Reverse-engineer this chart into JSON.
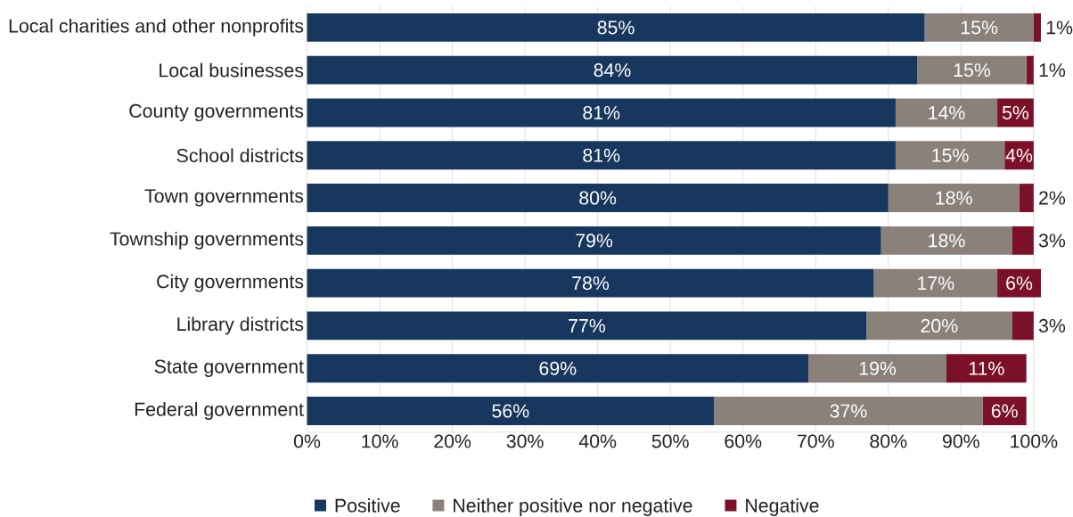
{
  "chart_data": {
    "type": "bar",
    "orientation": "horizontal",
    "stacked": true,
    "categories": [
      "Local charities and other nonprofits",
      "Local businesses",
      "County governments",
      "School districts",
      "Town governments",
      "Township governments",
      "City governments",
      "Library districts",
      "State government",
      "Federal government"
    ],
    "series": [
      {
        "name": "Positive",
        "color": "#17375e",
        "values": [
          85,
          84,
          81,
          81,
          80,
          79,
          78,
          77,
          69,
          56
        ],
        "value_labels": [
          "85%",
          "84%",
          "81%",
          "81%",
          "80%",
          "79%",
          "78%",
          "77%",
          "69%",
          "56%"
        ]
      },
      {
        "name": "Neither positive nor negative",
        "color": "#8b817b",
        "values": [
          15,
          15,
          14,
          15,
          18,
          18,
          17,
          20,
          19,
          37
        ],
        "value_labels": [
          "15%",
          "15%",
          "14%",
          "15%",
          "18%",
          "18%",
          "17%",
          "20%",
          "19%",
          "37%"
        ]
      },
      {
        "name": "Negative",
        "color": "#7b1128",
        "values": [
          1,
          1,
          5,
          4,
          2,
          3,
          6,
          3,
          11,
          6
        ],
        "value_labels": [
          "1%",
          "1%",
          "5%",
          "4%",
          "2%",
          "3%",
          "6%",
          "3%",
          "11%",
          "6%"
        ]
      }
    ],
    "xlim": [
      0,
      101
    ],
    "xticks": [
      {
        "value": 0,
        "label": "0%"
      },
      {
        "value": 10,
        "label": "10%"
      },
      {
        "value": 20,
        "label": "20%"
      },
      {
        "value": 30,
        "label": "30%"
      },
      {
        "value": 40,
        "label": "40%"
      },
      {
        "value": 50,
        "label": "50%"
      },
      {
        "value": 60,
        "label": "60%"
      },
      {
        "value": 70,
        "label": "70%"
      },
      {
        "value": 80,
        "label": "80%"
      },
      {
        "value": 90,
        "label": "90%"
      },
      {
        "value": 100,
        "label": "100%"
      }
    ],
    "grid": "x",
    "legend": "bottom"
  }
}
